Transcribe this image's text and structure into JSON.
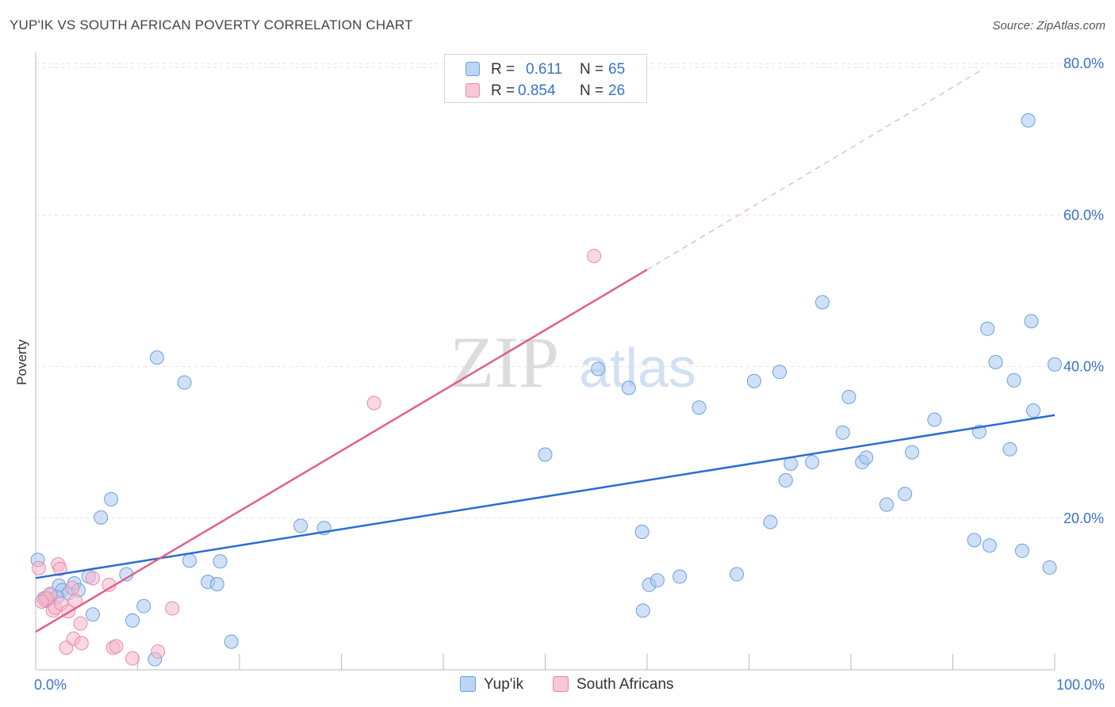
{
  "title": "YUP'IK VS SOUTH AFRICAN POVERTY CORRELATION CHART",
  "source": "Source: ZipAtlas.com",
  "watermark": {
    "zip": "ZIP",
    "atlas": "atlas"
  },
  "legend": {
    "rows": [
      {
        "r_label": "R =",
        "r_value": "0.611",
        "n_label": "N =",
        "n_value": "65"
      },
      {
        "r_label": "R =",
        "r_value": "0.854",
        "n_label": "N =",
        "n_value": "26"
      }
    ]
  },
  "colors": {
    "series1_fill": "#a9c8f0",
    "series1_stroke": "#6b9fe0",
    "series1_line": "#2a6cd0",
    "series2_fill": "#f6b8cc",
    "series2_stroke": "#e88aa8",
    "series2_line": "#e0608a",
    "axis_label": "#3a73c8",
    "grid": "#e3e3e3"
  },
  "chart_data": {
    "type": "scatter",
    "title": "YUP'IK VS SOUTH AFRICAN POVERTY CORRELATION CHART",
    "xlabel": "",
    "ylabel": "Poverty",
    "xlim": [
      0,
      100
    ],
    "ylim": [
      0,
      85
    ],
    "x_tick_labels": [
      "0.0%",
      "100.0%"
    ],
    "y_ticks": [
      20,
      40,
      60,
      80
    ],
    "y_tick_labels": [
      "20.0%",
      "40.0%",
      "60.0%",
      "80.0%"
    ],
    "series": [
      {
        "name": "Yup'ik",
        "R": 0.611,
        "N": 65,
        "trend": {
          "x": [
            0,
            100
          ],
          "y": [
            12.1,
            33.6
          ]
        },
        "points": [
          [
            0.2,
            14.5
          ],
          [
            0.8,
            9.4
          ],
          [
            1.5,
            9.9
          ],
          [
            2.3,
            11.1
          ],
          [
            2.6,
            10.5
          ],
          [
            3.2,
            10.1
          ],
          [
            3.8,
            11.4
          ],
          [
            4.2,
            10.5
          ],
          [
            5.2,
            12.3
          ],
          [
            5.6,
            7.3
          ],
          [
            6.4,
            20.1
          ],
          [
            7.4,
            22.5
          ],
          [
            8.9,
            12.6
          ],
          [
            9.5,
            6.5
          ],
          [
            10.6,
            8.4
          ],
          [
            11.7,
            1.4
          ],
          [
            11.9,
            41.2
          ],
          [
            14.6,
            37.9
          ],
          [
            15.1,
            14.4
          ],
          [
            16.9,
            11.6
          ],
          [
            17.8,
            11.3
          ],
          [
            18.1,
            14.3
          ],
          [
            19.2,
            3.7
          ],
          [
            26.0,
            19.0
          ],
          [
            28.3,
            18.7
          ],
          [
            50.0,
            28.4
          ],
          [
            55.2,
            39.7
          ],
          [
            58.2,
            37.2
          ],
          [
            59.5,
            18.2
          ],
          [
            59.6,
            7.8
          ],
          [
            60.2,
            11.2
          ],
          [
            61.0,
            11.8
          ],
          [
            63.2,
            12.3
          ],
          [
            65.1,
            34.6
          ],
          [
            68.8,
            12.6
          ],
          [
            70.5,
            38.1
          ],
          [
            72.1,
            19.5
          ],
          [
            73.0,
            39.3
          ],
          [
            73.6,
            25.0
          ],
          [
            74.1,
            27.2
          ],
          [
            76.2,
            27.4
          ],
          [
            77.2,
            48.5
          ],
          [
            79.2,
            31.3
          ],
          [
            79.8,
            36.0
          ],
          [
            81.1,
            27.4
          ],
          [
            81.5,
            28.0
          ],
          [
            83.5,
            21.8
          ],
          [
            85.3,
            23.2
          ],
          [
            86.0,
            28.7
          ],
          [
            88.2,
            33.0
          ],
          [
            92.1,
            17.1
          ],
          [
            92.6,
            31.4
          ],
          [
            93.4,
            45.0
          ],
          [
            93.6,
            16.4
          ],
          [
            94.2,
            40.6
          ],
          [
            95.6,
            29.1
          ],
          [
            96.0,
            38.2
          ],
          [
            96.8,
            15.7
          ],
          [
            97.4,
            72.5
          ],
          [
            97.7,
            46.0
          ],
          [
            97.9,
            34.2
          ],
          [
            99.5,
            13.5
          ],
          [
            100.0,
            40.3
          ],
          [
            2.1,
            9.6
          ],
          [
            1.0,
            9.1
          ]
        ]
      },
      {
        "name": "South Africans",
        "R": 0.854,
        "N": 26,
        "trend": {
          "x": [
            0,
            60
          ],
          "y": [
            5.0,
            52.8
          ]
        },
        "trend_dashed": {
          "x": [
            60,
            93
          ],
          "y": [
            52.8,
            79.3
          ]
        },
        "points": [
          [
            0.3,
            13.4
          ],
          [
            0.9,
            9.2
          ],
          [
            1.4,
            10.0
          ],
          [
            1.7,
            7.8
          ],
          [
            1.9,
            8.2
          ],
          [
            2.2,
            13.9
          ],
          [
            2.4,
            13.3
          ],
          [
            2.5,
            8.7
          ],
          [
            3.0,
            2.9
          ],
          [
            3.2,
            7.7
          ],
          [
            3.6,
            10.8
          ],
          [
            3.7,
            4.1
          ],
          [
            3.9,
            9.1
          ],
          [
            4.4,
            6.1
          ],
          [
            4.5,
            3.5
          ],
          [
            5.6,
            12.1
          ],
          [
            7.2,
            11.2
          ],
          [
            7.6,
            2.9
          ],
          [
            7.9,
            3.1
          ],
          [
            9.5,
            1.5
          ],
          [
            12.0,
            2.4
          ],
          [
            13.4,
            8.1
          ],
          [
            33.2,
            35.2
          ],
          [
            54.8,
            54.6
          ],
          [
            1.1,
            9.4
          ],
          [
            0.6,
            9.0
          ]
        ]
      }
    ]
  },
  "bottom_legend": [
    "Yup'ik",
    "South Africans"
  ]
}
